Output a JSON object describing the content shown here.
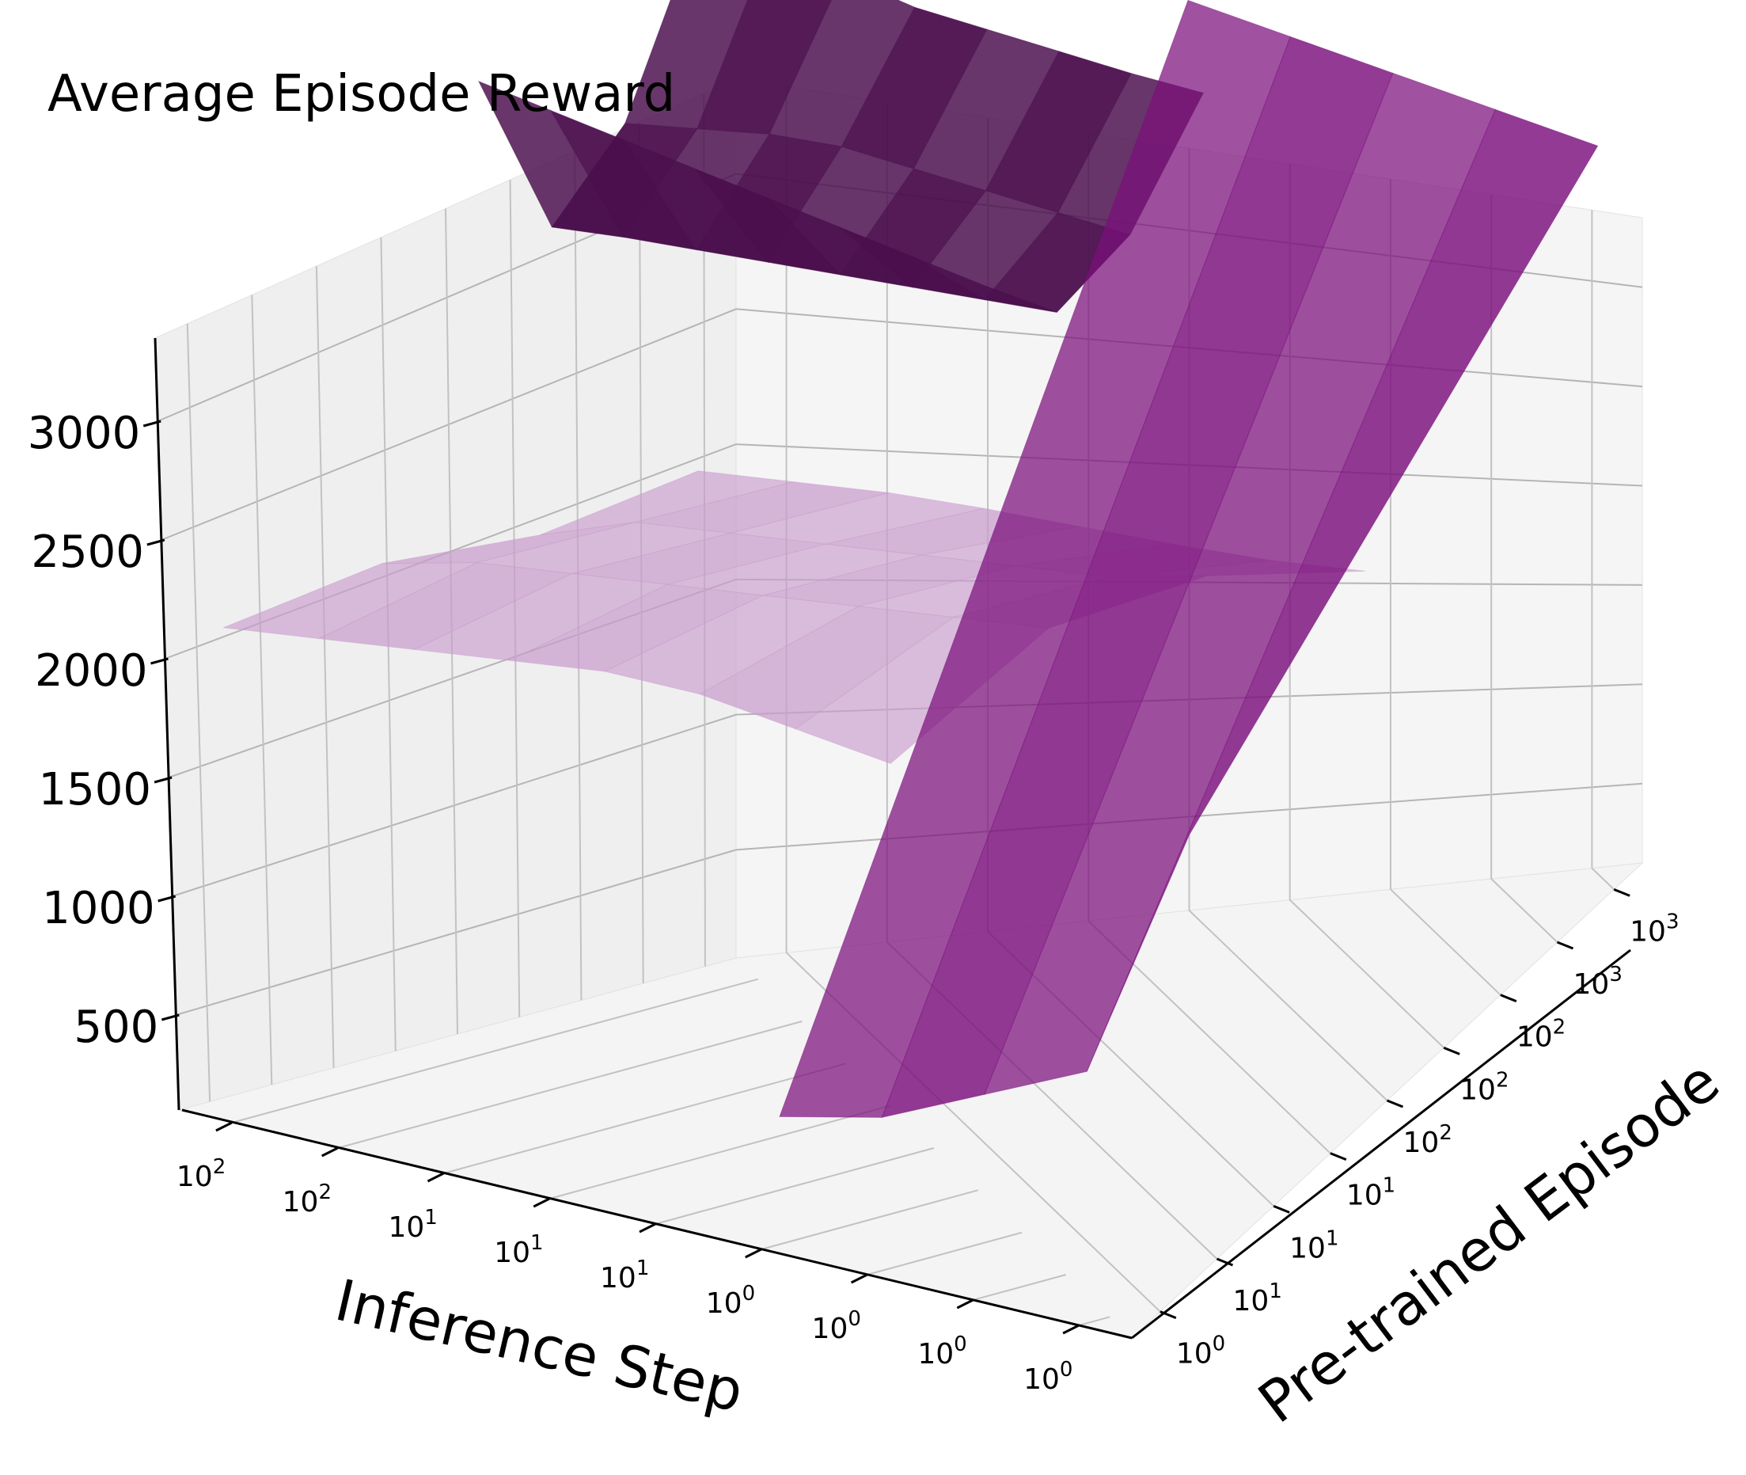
{
  "chart_data": {
    "type": "surface3d",
    "title": "Average Episode Reward",
    "xlabel": "Inference Step",
    "ylabel": "Pre-trained Episode",
    "zlabel": "",
    "x_tick_labels": [
      {
        "base": "10",
        "exp": "2"
      },
      {
        "base": "10",
        "exp": "2"
      },
      {
        "base": "10",
        "exp": "1"
      },
      {
        "base": "10",
        "exp": "1"
      },
      {
        "base": "10",
        "exp": "1"
      },
      {
        "base": "10",
        "exp": "0"
      },
      {
        "base": "10",
        "exp": "0"
      },
      {
        "base": "10",
        "exp": "0"
      },
      {
        "base": "10",
        "exp": "0"
      }
    ],
    "y_tick_labels": [
      {
        "base": "10",
        "exp": "0"
      },
      {
        "base": "10",
        "exp": "1"
      },
      {
        "base": "10",
        "exp": "1"
      },
      {
        "base": "10",
        "exp": "1"
      },
      {
        "base": "10",
        "exp": "2"
      },
      {
        "base": "10",
        "exp": "2"
      },
      {
        "base": "10",
        "exp": "2"
      },
      {
        "base": "10",
        "exp": "3"
      },
      {
        "base": "10",
        "exp": "3"
      }
    ],
    "z_ticks": [
      500,
      1000,
      1500,
      2000,
      2500,
      3000
    ],
    "z_tick_labels": [
      "500",
      "1000",
      "1500",
      "2000",
      "2500",
      "3000"
    ],
    "zlim": [
      100,
      3350
    ],
    "grid": true,
    "colors": {
      "light_surface": "#c99ccc",
      "mid_surface": "#8d3a90",
      "dark_surface": "#4b0f4d",
      "accent_purple": "#7b0f7c"
    },
    "surfaces": [
      {
        "shade": "dark",
        "description_z": "upper folded sheet",
        "z": [
          [
            3150,
            3150,
            3080,
            3020,
            3000,
            2980,
            2960,
            2950
          ],
          [
            2600,
            2650,
            2700,
            2720,
            2700,
            2680,
            2660,
            2640
          ],
          [
            2450,
            2480,
            2500,
            2520,
            2540,
            2560,
            2580,
            2600
          ],
          [
            3350,
            3300,
            3250,
            3200,
            3150,
            3100,
            3050,
            3000
          ]
        ]
      },
      {
        "shade": "light",
        "description_z": "lower undulating sheet",
        "z": [
          [
            850,
            900,
            950,
            980,
            1000,
            1020,
            1050,
            1100
          ],
          [
            1200,
            1350,
            1400,
            1450,
            1500,
            1550,
            1600,
            1700
          ],
          [
            1700,
            1800,
            1850,
            1900,
            1950,
            2000,
            2050,
            2100
          ],
          [
            2050,
            2100,
            2150,
            2200,
            2250,
            2250,
            2200,
            2150
          ]
        ]
      },
      {
        "shade": "mid",
        "description_z": "vertical wall sheet",
        "z": [
          [
            3400,
            3350,
            3300,
            3250,
            3200
          ],
          [
            300,
            400,
            600,
            800,
            1900
          ]
        ]
      }
    ]
  }
}
